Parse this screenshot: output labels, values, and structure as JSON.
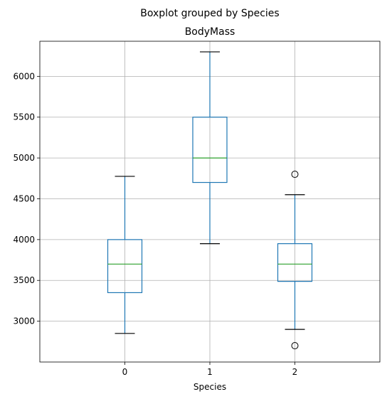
{
  "chart_data": {
    "type": "box",
    "suptitle": "Boxplot grouped by Species",
    "title": "BodyMass",
    "xlabel": "Species",
    "ylabel": "",
    "categories": [
      "0",
      "1",
      "2"
    ],
    "ylim": [
      2500,
      6430
    ],
    "yticks": [
      3000,
      3500,
      4000,
      4500,
      5000,
      5500,
      6000
    ],
    "grid": true,
    "colors": {
      "box": "#1f77b4",
      "median": "#2ca02c",
      "whisker": "#1f77b4",
      "cap": "#000000",
      "flier": "#000000"
    },
    "boxes": [
      {
        "category": "0",
        "whisker_low": 2850,
        "q1": 3350,
        "median": 3700,
        "q3": 4000,
        "whisker_high": 4775,
        "fliers": []
      },
      {
        "category": "1",
        "whisker_low": 3950,
        "q1": 4700,
        "median": 5000,
        "q3": 5500,
        "whisker_high": 6300,
        "fliers": []
      },
      {
        "category": "2",
        "whisker_low": 2900,
        "q1": 3488,
        "median": 3700,
        "q3": 3950,
        "whisker_high": 4550,
        "fliers": [
          4800,
          2700
        ]
      }
    ]
  }
}
